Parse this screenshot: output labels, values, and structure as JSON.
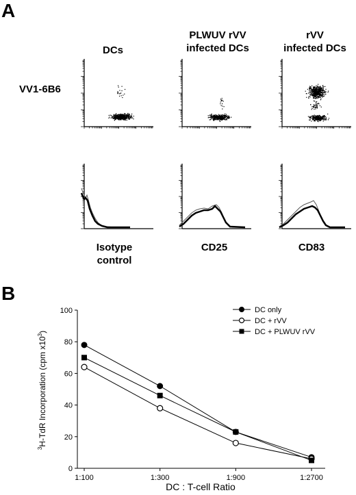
{
  "panel_a": {
    "letter": "A",
    "columns": [
      {
        "title": "DCs"
      },
      {
        "title": "PLWUV rVV infected DCs",
        "title_line1": "PLWUV rVV",
        "title_line2": "infected DCs"
      },
      {
        "title": "rVV infected DCs",
        "title_line1": "rVV",
        "title_line2": "infected DCs"
      }
    ],
    "row_label": "VV1-6B6",
    "histogram_labels": [
      {
        "line1": "Isotype",
        "line2": "control"
      },
      {
        "line1": "CD25",
        "line2": ""
      },
      {
        "line1": "CD83",
        "line2": ""
      }
    ]
  },
  "panel_b": {
    "letter": "B"
  },
  "chart_data": {
    "type": "line",
    "categories": [
      "1:100",
      "1:300",
      "1:900",
      "1:2700"
    ],
    "xlabel": "DC : T-cell  Ratio",
    "ylabel": "3H-TdR Incorporation (cpm x103)",
    "ylabel_parts": {
      "sup1": "3",
      "main": "H-TdR Incorporation (cpm x10",
      "sup2": "3",
      "close": ")"
    },
    "ylim": [
      0,
      100
    ],
    "yticks": [
      0,
      20,
      40,
      60,
      80,
      100
    ],
    "grid": false,
    "legend_position": "top-right",
    "series": [
      {
        "name": "DC only",
        "marker": "filled-circle",
        "values": [
          78,
          52,
          23,
          7
        ]
      },
      {
        "name": "DC + rVV",
        "marker": "open-circle",
        "values": [
          64,
          38,
          16,
          6
        ]
      },
      {
        "name": "DC + PLWUV rVV",
        "marker": "filled-square",
        "values": [
          70,
          46,
          23,
          5
        ]
      }
    ]
  }
}
